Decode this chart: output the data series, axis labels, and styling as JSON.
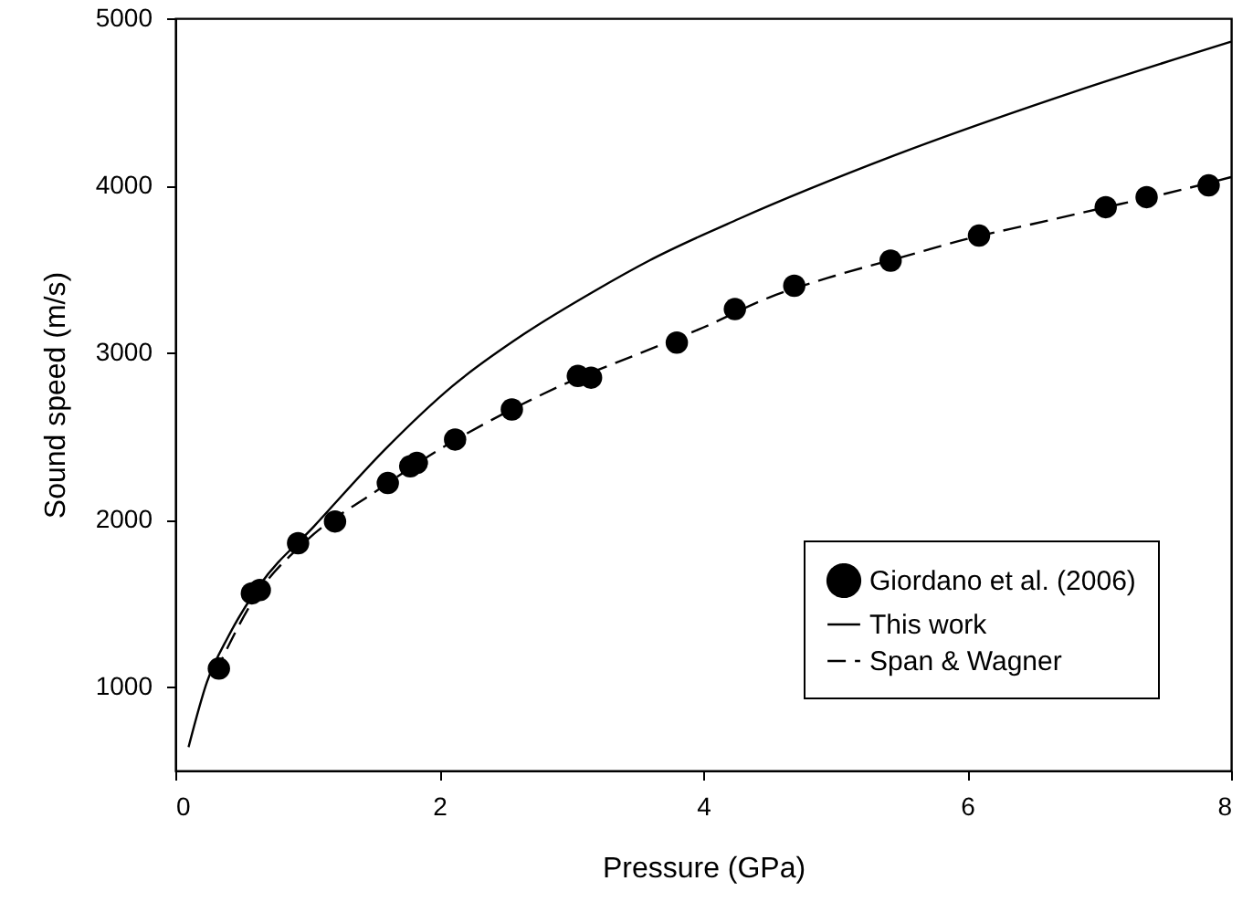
{
  "chart_data": {
    "type": "line",
    "xlabel": "Pressure (GPa)",
    "ylabel": "Sound speed (m/s)",
    "xlim": [
      0,
      8
    ],
    "xticks": [
      0,
      2,
      4,
      6,
      8
    ],
    "ylim": [
      500,
      5000
    ],
    "yticks": [
      1000,
      2000,
      3000,
      4000,
      5000
    ],
    "grid": false,
    "legend": "bottom right",
    "series": [
      {
        "name": "Giordano et al. (2006)",
        "type": "scatter",
        "marker": "circle",
        "color": "#000000",
        "x": [
          0.33,
          0.58,
          0.64,
          0.93,
          1.21,
          1.61,
          1.78,
          1.83,
          2.12,
          2.55,
          3.05,
          3.15,
          3.8,
          4.24,
          4.69,
          5.42,
          6.09,
          7.05,
          7.36,
          7.83
        ],
        "values": [
          1110,
          1560,
          1580,
          1860,
          1990,
          2220,
          2320,
          2340,
          2480,
          2660,
          2860,
          2850,
          3060,
          3260,
          3400,
          3550,
          3700,
          3870,
          3930,
          4000
        ]
      },
      {
        "name": "This work",
        "line_style": "solid",
        "color": "#000000",
        "x": [
          0.1,
          0.24,
          0.4,
          0.64,
          1.05,
          1.6,
          2.1,
          2.64,
          3.18,
          3.59,
          4.27,
          5.45,
          6.81,
          8.0
        ],
        "values": [
          640,
          1030,
          1300,
          1610,
          1960,
          2430,
          2800,
          3110,
          3370,
          3550,
          3800,
          4180,
          4560,
          4860
        ]
      },
      {
        "name": "Span & Wagner",
        "line_style": "dashed",
        "color": "#000000",
        "x": [
          0.3,
          0.6,
          1.0,
          1.5,
          2.0,
          2.5,
          3.0,
          3.5,
          4.0,
          4.5,
          5.0,
          5.5,
          6.0,
          6.5,
          7.0,
          7.5,
          8.0
        ],
        "values": [
          1080,
          1530,
          1880,
          2160,
          2420,
          2640,
          2830,
          2990,
          3150,
          3330,
          3460,
          3570,
          3680,
          3770,
          3860,
          3950,
          4050
        ]
      }
    ]
  }
}
